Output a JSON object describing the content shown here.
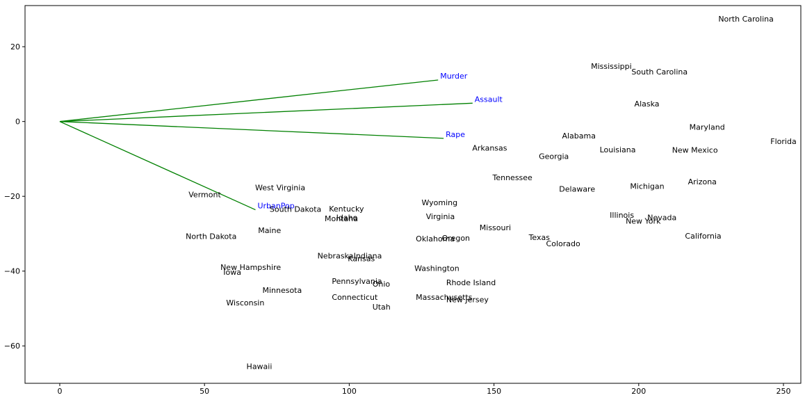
{
  "chart_data": {
    "type": "scatter",
    "title": "",
    "xlabel": "",
    "ylabel": "",
    "xlim": [
      -12,
      256
    ],
    "ylim": [
      -70,
      31
    ],
    "xticks": [
      0,
      50,
      100,
      150,
      200,
      250
    ],
    "yticks": [
      -60,
      -40,
      -20,
      0,
      20
    ],
    "grid": false,
    "colors": {
      "point_label": "#000000",
      "vector_line": "#008000",
      "vector_label": "#0000ff",
      "axes": "#000000"
    },
    "points": [
      {
        "label": "North Carolina",
        "x": 227.5,
        "y": 27.5
      },
      {
        "label": "Mississippi",
        "x": 183.5,
        "y": 14.8
      },
      {
        "label": "South Carolina",
        "x": 197.5,
        "y": 13.3
      },
      {
        "label": "Alaska",
        "x": 198.5,
        "y": 4.8
      },
      {
        "label": "Maryland",
        "x": 217.5,
        "y": -1.5
      },
      {
        "label": "Florida",
        "x": 245.5,
        "y": -5.3
      },
      {
        "label": "Alabama",
        "x": 173.5,
        "y": -3.8
      },
      {
        "label": "Louisiana",
        "x": 186.5,
        "y": -7.5
      },
      {
        "label": "New Mexico",
        "x": 211.5,
        "y": -7.6
      },
      {
        "label": "Arkansas",
        "x": 142.5,
        "y": -7.0
      },
      {
        "label": "Georgia",
        "x": 165.5,
        "y": -9.3
      },
      {
        "label": "Tennessee",
        "x": 149.5,
        "y": -14.9
      },
      {
        "label": "Delaware",
        "x": 172.5,
        "y": -18.0
      },
      {
        "label": "Michigan",
        "x": 197.0,
        "y": -17.3
      },
      {
        "label": "Arizona",
        "x": 217.0,
        "y": -16.1
      },
      {
        "label": "Vermont",
        "x": 44.5,
        "y": -19.5
      },
      {
        "label": "West Virginia",
        "x": 67.5,
        "y": -17.6
      },
      {
        "label": "Wyoming",
        "x": 125.0,
        "y": -21.6
      },
      {
        "label": "South Dakota",
        "x": 72.5,
        "y": -23.4
      },
      {
        "label": "Kentucky",
        "x": 93.0,
        "y": -23.3
      },
      {
        "label": "Idaho",
        "x": 95.5,
        "y": -25.6
      },
      {
        "label": "Montana",
        "x": 91.5,
        "y": -25.9
      },
      {
        "label": "Virginia",
        "x": 126.5,
        "y": -25.4
      },
      {
        "label": "Illinois",
        "x": 190.0,
        "y": -25.0
      },
      {
        "label": "Nevada",
        "x": 203.0,
        "y": -25.6
      },
      {
        "label": "New York",
        "x": 195.5,
        "y": -26.6
      },
      {
        "label": "Missouri",
        "x": 145.0,
        "y": -28.3
      },
      {
        "label": "Maine",
        "x": 68.5,
        "y": -29.1
      },
      {
        "label": "North Dakota",
        "x": 43.5,
        "y": -30.7
      },
      {
        "label": "Oklahoma",
        "x": 123.0,
        "y": -31.3
      },
      {
        "label": "Oregon",
        "x": 132.0,
        "y": -31.1
      },
      {
        "label": "Texas",
        "x": 162.0,
        "y": -30.9
      },
      {
        "label": "Colorado",
        "x": 168.0,
        "y": -32.6
      },
      {
        "label": "California",
        "x": 216.0,
        "y": -30.6
      },
      {
        "label": "Nebraska",
        "x": 89.0,
        "y": -35.9
      },
      {
        "label": "Indiana",
        "x": 101.5,
        "y": -35.9
      },
      {
        "label": "Kansas",
        "x": 99.5,
        "y": -36.6
      },
      {
        "label": "New Hampshire",
        "x": 55.5,
        "y": -38.9
      },
      {
        "label": "Iowa",
        "x": 56.5,
        "y": -40.2
      },
      {
        "label": "Washington",
        "x": 122.5,
        "y": -39.2
      },
      {
        "label": "Pennsylvania",
        "x": 94.0,
        "y": -42.7
      },
      {
        "label": "Ohio",
        "x": 108.0,
        "y": -43.4
      },
      {
        "label": "Rhode Island",
        "x": 133.5,
        "y": -43.0
      },
      {
        "label": "Minnesota",
        "x": 70.0,
        "y": -45.1
      },
      {
        "label": "Connecticut",
        "x": 94.0,
        "y": -46.9
      },
      {
        "label": "Massachusetts",
        "x": 123.0,
        "y": -46.9
      },
      {
        "label": "New Jersey",
        "x": 133.5,
        "y": -47.6
      },
      {
        "label": "Wisconsin",
        "x": 57.5,
        "y": -48.4
      },
      {
        "label": "Utah",
        "x": 108.0,
        "y": -49.5
      },
      {
        "label": "Hawaii",
        "x": 64.5,
        "y": -65.4
      }
    ],
    "vectors": [
      {
        "label": "Murder",
        "x": 130.7,
        "y": 11.1
      },
      {
        "label": "Assault",
        "x": 142.6,
        "y": 4.9
      },
      {
        "label": "Rape",
        "x": 132.6,
        "y": -4.5
      },
      {
        "label": "UrbanPop",
        "x": 67.6,
        "y": -23.6
      }
    ]
  }
}
